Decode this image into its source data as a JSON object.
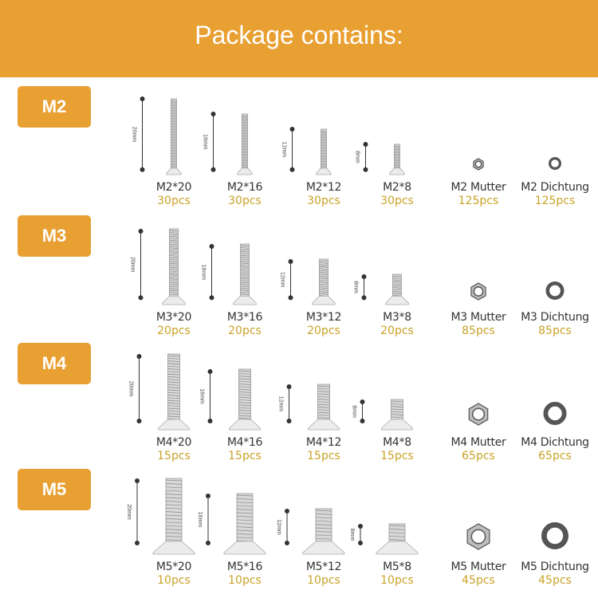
{
  "header": {
    "title": "Package contains:"
  },
  "colors": {
    "accent": "#E8A033",
    "quantity": "#C9A227",
    "text": "#333333"
  },
  "rows": [
    {
      "size": "M2",
      "items": [
        {
          "name": "M2*20",
          "qty": "30pcs",
          "type": "screw",
          "length_mm": 20,
          "dim_label": "20mm"
        },
        {
          "name": "M2*16",
          "qty": "30pcs",
          "type": "screw",
          "length_mm": 16,
          "dim_label": "16mm"
        },
        {
          "name": "M2*12",
          "qty": "30pcs",
          "type": "screw",
          "length_mm": 12,
          "dim_label": "12mm"
        },
        {
          "name": "M2*8",
          "qty": "30pcs",
          "type": "screw",
          "length_mm": 8,
          "dim_label": "8mm"
        },
        {
          "name": "M2 Mutter",
          "qty": "125pcs",
          "type": "nut"
        },
        {
          "name": "M2 Dichtung",
          "qty": "125pcs",
          "type": "washer"
        }
      ]
    },
    {
      "size": "M3",
      "items": [
        {
          "name": "M3*20",
          "qty": "20pcs",
          "type": "screw",
          "length_mm": 20,
          "dim_label": "20mm"
        },
        {
          "name": "M3*16",
          "qty": "20pcs",
          "type": "screw",
          "length_mm": 16,
          "dim_label": "16mm"
        },
        {
          "name": "M3*12",
          "qty": "20pcs",
          "type": "screw",
          "length_mm": 12,
          "dim_label": "12mm"
        },
        {
          "name": "M3*8",
          "qty": "20pcs",
          "type": "screw",
          "length_mm": 8,
          "dim_label": "8mm"
        },
        {
          "name": "M3 Mutter",
          "qty": "85pcs",
          "type": "nut"
        },
        {
          "name": "M3 Dichtung",
          "qty": "85pcs",
          "type": "washer"
        }
      ]
    },
    {
      "size": "M4",
      "items": [
        {
          "name": "M4*20",
          "qty": "15pcs",
          "type": "screw",
          "length_mm": 20,
          "dim_label": "20mm"
        },
        {
          "name": "M4*16",
          "qty": "15pcs",
          "type": "screw",
          "length_mm": 16,
          "dim_label": "16mm"
        },
        {
          "name": "M4*12",
          "qty": "15pcs",
          "type": "screw",
          "length_mm": 12,
          "dim_label": "12mm"
        },
        {
          "name": "M4*8",
          "qty": "15pcs",
          "type": "screw",
          "length_mm": 8,
          "dim_label": "8mm"
        },
        {
          "name": "M4 Mutter",
          "qty": "65pcs",
          "type": "nut"
        },
        {
          "name": "M4 Dichtung",
          "qty": "65pcs",
          "type": "washer"
        }
      ]
    },
    {
      "size": "M5",
      "items": [
        {
          "name": "M5*20",
          "qty": "10pcs",
          "type": "screw",
          "length_mm": 20,
          "dim_label": "20mm"
        },
        {
          "name": "M5*16",
          "qty": "10pcs",
          "type": "screw",
          "length_mm": 16,
          "dim_label": "16mm"
        },
        {
          "name": "M5*12",
          "qty": "10pcs",
          "type": "screw",
          "length_mm": 12,
          "dim_label": "12mm"
        },
        {
          "name": "M5*8",
          "qty": "10pcs",
          "type": "screw",
          "length_mm": 8,
          "dim_label": "8mm"
        },
        {
          "name": "M5 Mutter",
          "qty": "45pcs",
          "type": "nut"
        },
        {
          "name": "M5 Dichtung",
          "qty": "45pcs",
          "type": "washer"
        }
      ]
    }
  ]
}
